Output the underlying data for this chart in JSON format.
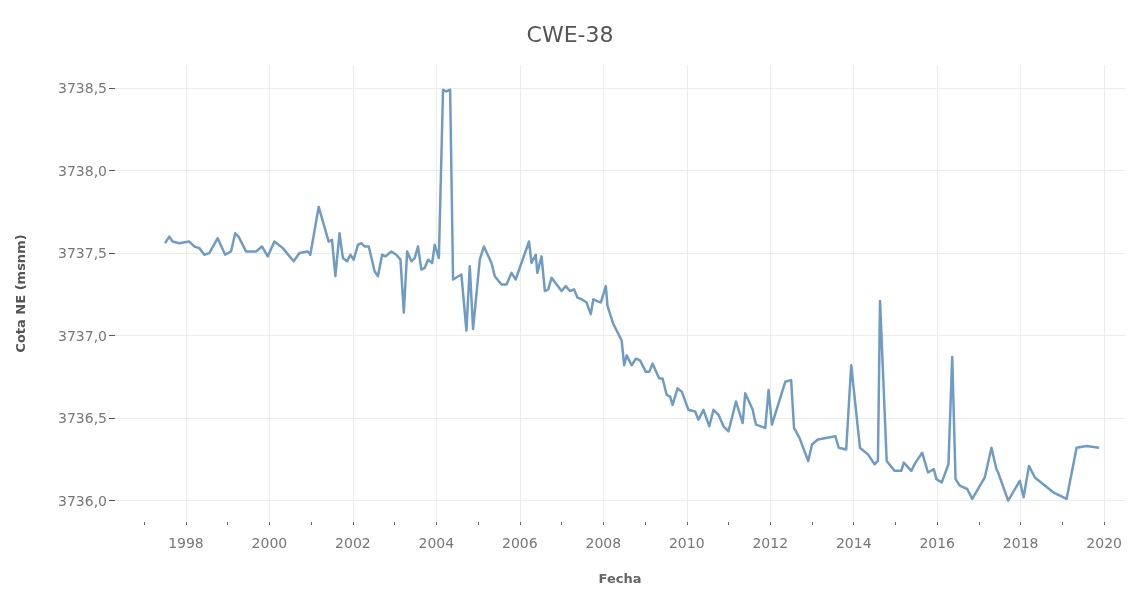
{
  "chart_data": {
    "type": "line",
    "title": "CWE-38",
    "xlabel": "Fecha",
    "ylabel": "Cota NE (msnm)",
    "xlim": [
      1996.3,
      2020.5
    ],
    "xticks": [
      {
        "value": 1997,
        "label": null
      },
      1998,
      {
        "value": 1999,
        "label": null
      },
      2000,
      {
        "value": 2001,
        "label": null
      },
      2002,
      {
        "value": 2003,
        "label": null
      },
      2004,
      {
        "value": 2005,
        "label": null
      },
      2006,
      {
        "value": 2007,
        "label": null
      },
      2008,
      {
        "value": 2009,
        "label": null
      },
      2010,
      {
        "value": 2011,
        "label": null
      },
      2012,
      {
        "value": 2013,
        "label": null
      },
      2014,
      {
        "value": 2015,
        "label": null
      },
      2016,
      {
        "value": 2017,
        "label": null
      },
      2018,
      {
        "value": 2019,
        "label": null
      },
      2020
    ],
    "ylim": [
      3735.87,
      3738.64
    ],
    "yticks": [
      {
        "value": 3736,
        "label": "3736,0"
      },
      {
        "value": 3736.5,
        "label": "3736,5"
      },
      {
        "value": 3737,
        "label": "3737,0"
      },
      {
        "value": 3737.5,
        "label": "3737,5"
      },
      {
        "value": 3738,
        "label": "3738,0"
      },
      {
        "value": 3738.5,
        "label": "3738,5"
      }
    ],
    "grid": true,
    "marker": "none",
    "line_style": "solid",
    "series": [
      {
        "color": "#6f9bc4",
        "x": [
          1997.5,
          1997.6,
          1997.68,
          1997.84,
          1998.08,
          1998.2,
          1998.32,
          1998.44,
          1998.56,
          1998.76,
          1998.94,
          1999.08,
          1999.18,
          1999.26,
          1999.44,
          1999.68,
          1999.82,
          1999.96,
          2000.12,
          2000.32,
          2000.58,
          2000.72,
          2000.92,
          2000.98,
          2001.18,
          2001.42,
          2001.5,
          2001.58,
          2001.68,
          2001.76,
          2001.86,
          2001.94,
          2002.02,
          2002.12,
          2002.2,
          2002.28,
          2002.38,
          2002.52,
          2002.6,
          2002.7,
          2002.78,
          2002.92,
          2003.04,
          2003.14,
          2003.22,
          2003.3,
          2003.4,
          2003.48,
          2003.56,
          2003.64,
          2003.72,
          2003.8,
          2003.9,
          2003.96,
          2004.06,
          2004.16,
          2004.24,
          2004.33,
          2004.4,
          2004.6,
          2004.72,
          2004.8,
          2004.88,
          2005.04,
          2005.14,
          2005.32,
          2005.4,
          2005.56,
          2005.68,
          2005.8,
          2005.9,
          2006.22,
          2006.28,
          2006.38,
          2006.42,
          2006.52,
          2006.6,
          2006.68,
          2006.76,
          2007,
          2007.1,
          2007.2,
          2007.3,
          2007.38,
          2007.48,
          2007.6,
          2007.7,
          2007.76,
          2007.94,
          2008.06,
          2008.1,
          2008.24,
          2008.44,
          2008.5,
          2008.56,
          2008.68,
          2008.78,
          2008.88,
          2009.02,
          2009.1,
          2009.18,
          2009.34,
          2009.42,
          2009.52,
          2009.6,
          2009.66,
          2009.78,
          2009.88,
          2010.04,
          2010.2,
          2010.28,
          2010.4,
          2010.54,
          2010.64,
          2010.76,
          2010.88,
          2011,
          2011.18,
          2011.34,
          2011.4,
          2011.58,
          2011.62,
          2011.66,
          2011.88,
          2011.96,
          2012.04,
          2012.36,
          2012.5,
          2012.57,
          2012.7,
          2012.91,
          2013,
          2013.14,
          2013.56,
          2013.64,
          2013.82,
          2013.94,
          2014.15,
          2014.34,
          2014.5,
          2014.58,
          2014.63,
          2014.79,
          2014.98,
          2015.14,
          2015.2,
          2015.38,
          2015.48,
          2015.64,
          2015.78,
          2015.92,
          2015.98,
          2016.11,
          2016.27,
          2016.36,
          2016.44,
          2016.54,
          2016.72,
          2016.84,
          2017.14,
          2017.3,
          2017.42,
          2017.46,
          2017.7,
          2017.98,
          2018.07,
          2018.2,
          2018.34,
          2018.78,
          2019.1,
          2019.34,
          2019.58,
          2019.88
        ],
        "values": [
          3737.56,
          3737.6,
          3737.57,
          3737.56,
          3737.57,
          3737.54,
          3737.53,
          3737.49,
          3737.5,
          3737.59,
          3737.49,
          3737.51,
          3737.62,
          3737.6,
          3737.51,
          3737.51,
          3737.54,
          3737.48,
          3737.57,
          3737.53,
          3737.45,
          3737.5,
          3737.51,
          3737.49,
          3737.78,
          3737.57,
          3737.58,
          3737.36,
          3737.62,
          3737.47,
          3737.45,
          3737.49,
          3737.46,
          3737.55,
          3737.56,
          3737.54,
          3737.54,
          3737.39,
          3737.36,
          3737.49,
          3737.48,
          3737.51,
          3737.49,
          3737.46,
          3737.14,
          3737.51,
          3737.45,
          3737.47,
          3737.54,
          3737.4,
          3737.41,
          3737.46,
          3737.44,
          3737.55,
          3737.47,
          3738.49,
          3738.48,
          3738.49,
          3737.34,
          3737.37,
          3737.03,
          3737.42,
          3737.04,
          3737.46,
          3737.54,
          3737.44,
          3737.36,
          3737.31,
          3737.31,
          3737.38,
          3737.34,
          3737.57,
          3737.44,
          3737.49,
          3737.38,
          3737.48,
          3737.27,
          3737.28,
          3737.35,
          3737.27,
          3737.3,
          3737.27,
          3737.28,
          3737.23,
          3737.22,
          3737.2,
          3737.13,
          3737.22,
          3737.2,
          3737.3,
          3737.18,
          3737.07,
          3736.97,
          3736.82,
          3736.88,
          3736.82,
          3736.86,
          3736.85,
          3736.78,
          3736.78,
          3736.83,
          3736.74,
          3736.74,
          3736.64,
          3736.63,
          3736.58,
          3736.68,
          3736.66,
          3736.55,
          3736.54,
          3736.49,
          3736.55,
          3736.45,
          3736.55,
          3736.52,
          3736.45,
          3736.42,
          3736.6,
          3736.47,
          3736.65,
          3736.55,
          3736.5,
          3736.46,
          3736.44,
          3736.67,
          3736.46,
          3736.72,
          3736.73,
          3736.44,
          3736.38,
          3736.24,
          3736.34,
          3736.37,
          3736.39,
          3736.32,
          3736.31,
          3736.82,
          3736.32,
          3736.28,
          3736.22,
          3736.24,
          3737.21,
          3736.24,
          3736.18,
          3736.18,
          3736.23,
          3736.18,
          3736.23,
          3736.29,
          3736.17,
          3736.19,
          3736.13,
          3736.11,
          3736.22,
          3736.87,
          3736.13,
          3736.09,
          3736.07,
          3736.01,
          3736.14,
          3736.32,
          3736.19,
          3736.17,
          3736,
          3736.12,
          3736.02,
          3736.21,
          3736.14,
          3736.05,
          3736.01,
          3736.32,
          3736.33,
          3736.32
        ]
      }
    ]
  }
}
